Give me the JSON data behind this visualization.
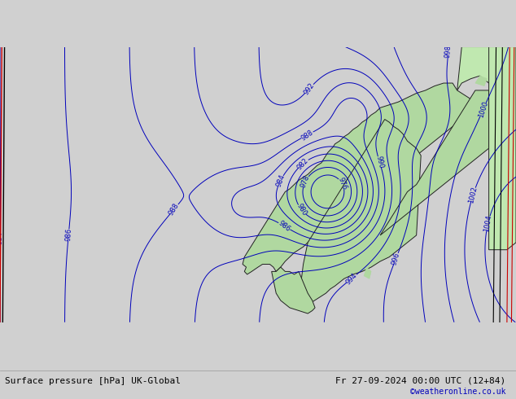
{
  "title_left": "Surface pressure [hPa] UK-Global",
  "title_right": "Fr 27-09-2024 00:00 UTC (12+84)",
  "copyright": "©weatheronline.co.uk",
  "bg_color": "#d0d0d0",
  "land_color": "#b0d8a0",
  "sea_color": "#d0d0d0",
  "isobar_color": "#0000bb",
  "coast_color": "#222222",
  "font_size_label": 6,
  "font_size_bottom": 8,
  "font_size_copyright": 7,
  "bottom_bar_color": "#e0e0ee",
  "red_line_color": "#cc0000",
  "black_line_color": "#000000",
  "map_lon_min": -22,
  "map_lon_max": 35,
  "map_lat_min": 54,
  "map_lat_max": 73
}
